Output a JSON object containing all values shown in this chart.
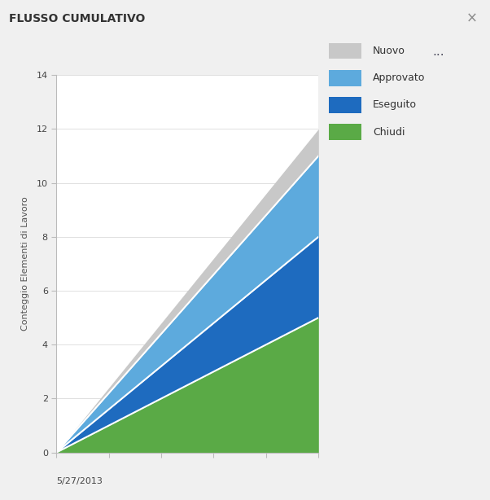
{
  "title": "FLUSSO CUMULATIVO",
  "ylabel": "Conteggio Elementi di Lavoro",
  "xlabel_date": "5/27/2013",
  "ylim": [
    0,
    14
  ],
  "yticks": [
    0,
    2,
    4,
    6,
    8,
    10,
    12,
    14
  ],
  "x": [
    0,
    1,
    2,
    3,
    4,
    5
  ],
  "nuovo_top": [
    0,
    2.4,
    4.8,
    7.2,
    9.6,
    12.0
  ],
  "approvato_top": [
    0,
    2.2,
    4.4,
    6.6,
    8.8,
    11.0
  ],
  "eseguito_top": [
    0,
    1.6,
    3.2,
    4.8,
    6.4,
    8.0
  ],
  "chiudi_top": [
    0,
    1.0,
    2.0,
    3.0,
    4.0,
    5.0
  ],
  "color_nuovo": "#c8c8c8",
  "color_approvato": "#5daadd",
  "color_eseguito": "#1e6bbf",
  "color_chiudi": "#5aaa46",
  "color_line": "#ffffff",
  "legend_labels": [
    "Nuovo",
    "Approvato",
    "Eseguito",
    "Chiudi"
  ],
  "bg_color": "#ffffff",
  "title_bg": "#eeeeee",
  "fig_bg": "#f0f0f0",
  "title_fontsize": 10,
  "axis_label_fontsize": 8,
  "legend_fontsize": 9,
  "tick_fontsize": 8
}
